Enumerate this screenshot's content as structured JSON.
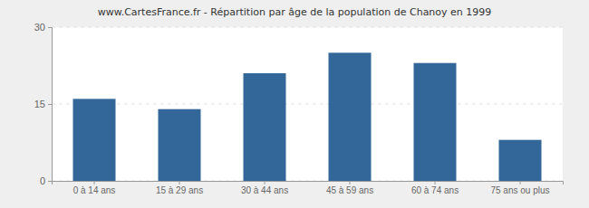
{
  "chart_data": {
    "type": "bar",
    "title": "www.CartesFrance.fr - Répartition par âge de la population de Chanoy en 1999",
    "categories": [
      "0 à 14 ans",
      "15 à 29 ans",
      "30 à 44 ans",
      "45 à 59 ans",
      "60 à 74 ans",
      "75 ans ou plus"
    ],
    "values": [
      16,
      14,
      21,
      25,
      23,
      8
    ],
    "color": "#336699",
    "ylim": [
      0,
      30
    ],
    "yticks": [
      0,
      15,
      30
    ],
    "grid": true
  }
}
